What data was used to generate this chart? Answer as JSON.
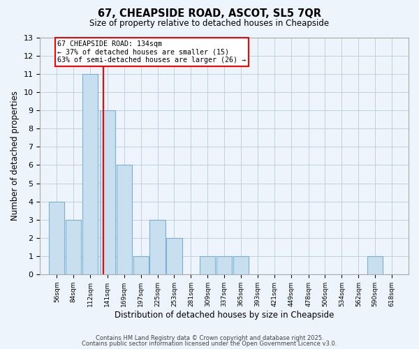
{
  "title": "67, CHEAPSIDE ROAD, ASCOT, SL5 7QR",
  "subtitle": "Size of property relative to detached houses in Cheapside",
  "xlabel": "Distribution of detached houses by size in Cheapside",
  "ylabel": "Number of detached properties",
  "bin_labels": [
    "56sqm",
    "84sqm",
    "112sqm",
    "141sqm",
    "169sqm",
    "197sqm",
    "225sqm",
    "253sqm",
    "281sqm",
    "309sqm",
    "337sqm",
    "365sqm",
    "393sqm",
    "421sqm",
    "449sqm",
    "478sqm",
    "506sqm",
    "534sqm",
    "562sqm",
    "590sqm",
    "618sqm"
  ],
  "bin_centers": [
    56,
    84,
    112,
    141,
    169,
    197,
    225,
    253,
    281,
    309,
    337,
    365,
    393,
    421,
    449,
    478,
    506,
    534,
    562,
    590,
    618
  ],
  "counts": [
    4,
    3,
    11,
    9,
    6,
    1,
    3,
    2,
    0,
    1,
    1,
    1,
    0,
    0,
    0,
    0,
    0,
    0,
    0,
    1,
    0
  ],
  "bar_color": "#c8dff0",
  "bar_edge_color": "#7aafd4",
  "ref_line_x": 134,
  "ref_line_color": "red",
  "annotation_title": "67 CHEAPSIDE ROAD: 134sqm",
  "annotation_line2": "← 37% of detached houses are smaller (15)",
  "annotation_line3": "63% of semi-detached houses are larger (26) →",
  "annotation_box_color": "red",
  "annotation_bg": "white",
  "ylim": [
    0,
    13
  ],
  "yticks": [
    0,
    1,
    2,
    3,
    4,
    5,
    6,
    7,
    8,
    9,
    10,
    11,
    12,
    13
  ],
  "footer1": "Contains HM Land Registry data © Crown copyright and database right 2025.",
  "footer2": "Contains public sector information licensed under the Open Government Licence v3.0.",
  "bg_color": "#eef4fb",
  "grid_color": "#c0d0e0"
}
